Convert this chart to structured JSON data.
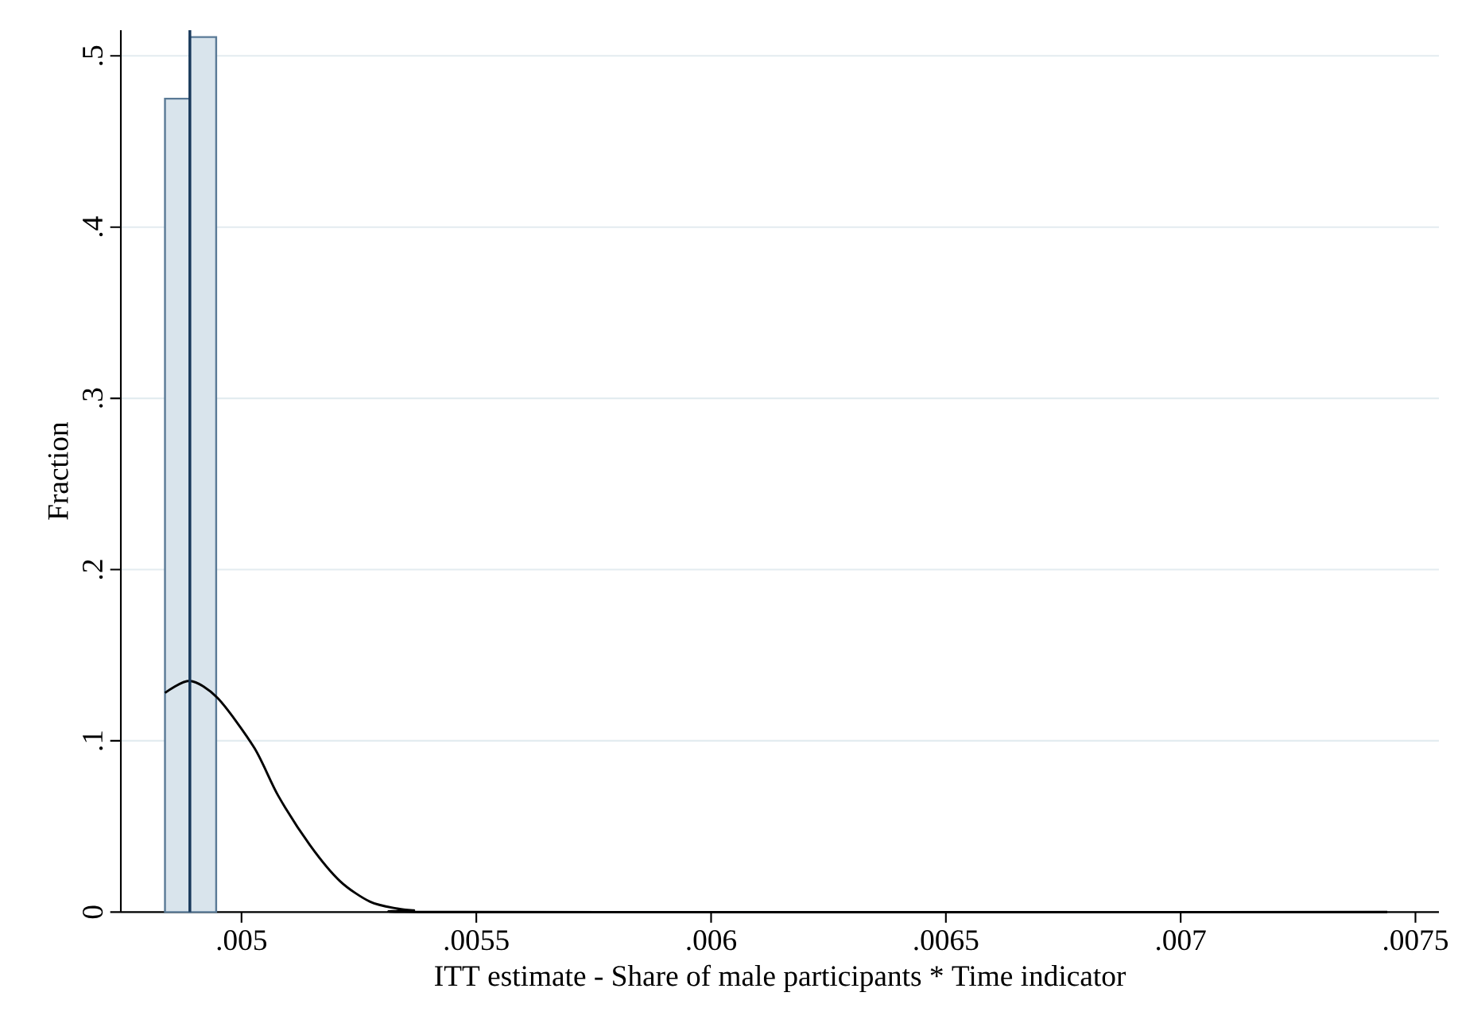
{
  "chart_data": {
    "type": "histogram",
    "xlabel": "ITT estimate - Share of male participants * Time indicator",
    "ylabel": "Fraction",
    "series": [
      {
        "bins": [
          0.004837,
          0.00489,
          0.004946
        ],
        "values": [
          0.475,
          0.511
        ],
        "color": "#d9e4ec"
      },
      {
        "type": "line",
        "color": "#000000",
        "x": [
          0.004837,
          0.00489,
          0.004949,
          0.005027,
          0.005078,
          0.005146,
          0.00521,
          0.005274,
          0.005332,
          0.005366,
          0.005468,
          0.00744
        ],
        "values": [
          0.128,
          0.135,
          0.125,
          0.096,
          0.068,
          0.039,
          0.018,
          0.006,
          0.002,
          0.001,
          0,
          0
        ]
      }
    ],
    "ref_lines": [
      {
        "axis": "x",
        "value": 0.00489,
        "color": "#1a3a5c"
      }
    ],
    "xlim": [
      0.004743,
      0.00755
    ],
    "xticks": [
      {
        "value": 0.005,
        "label": ".005"
      },
      {
        "value": 0.0055,
        "label": ".0055"
      },
      {
        "value": 0.006,
        "label": ".006"
      },
      {
        "value": 0.0065,
        "label": ".0065"
      },
      {
        "value": 0.007,
        "label": ".007"
      },
      {
        "value": 0.0075,
        "label": ".0075"
      }
    ],
    "ylim": [
      0,
      0.515
    ],
    "yticks": [
      0,
      {
        "value": 0.1,
        "label": ".1"
      },
      {
        "value": 0.2,
        "label": ".2"
      },
      {
        "value": 0.3,
        "label": ".3"
      },
      {
        "value": 0.4,
        "label": ".4"
      },
      {
        "value": 0.5,
        "label": ".5"
      }
    ],
    "grid": "y"
  }
}
